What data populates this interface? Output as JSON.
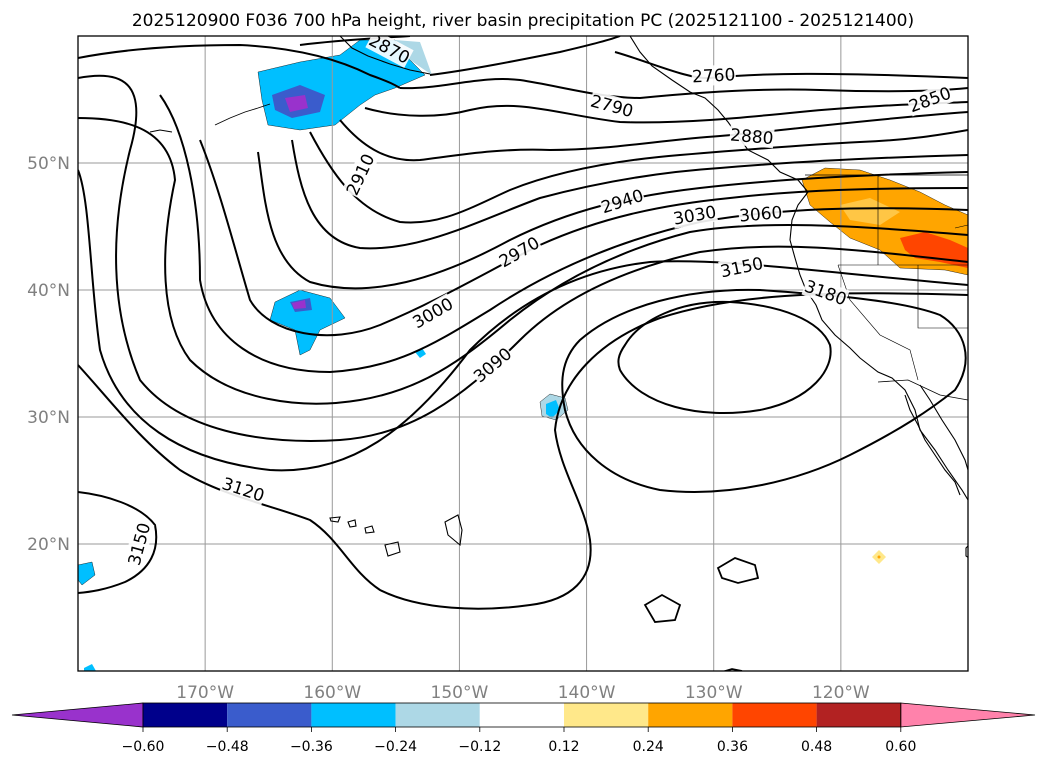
{
  "title": "2025120900 F036 700 hPa height, river basin precipitation PC (2025121100 - 2025121400)",
  "chart_data": {
    "type": "contour",
    "title": "2025120900 F036 700 hPa height, river basin precipitation PC (2025121100 - 2025121400)",
    "map": {
      "lon_range": [
        -180,
        -110
      ],
      "lat_range": [
        10,
        60
      ],
      "lon_ticks": [
        {
          "value": -170,
          "label": "170°W"
        },
        {
          "value": -160,
          "label": "160°W"
        },
        {
          "value": -150,
          "label": "150°W"
        },
        {
          "value": -140,
          "label": "140°W"
        },
        {
          "value": -130,
          "label": "130°W"
        },
        {
          "value": -120,
          "label": "120°W"
        }
      ],
      "lat_ticks": [
        {
          "value": 20,
          "label": "20°N"
        },
        {
          "value": 30,
          "label": "30°N"
        },
        {
          "value": 40,
          "label": "40°N"
        },
        {
          "value": 50,
          "label": "50°N"
        }
      ],
      "grid": true
    },
    "height_contour_labels": [
      {
        "value": "2760",
        "lon": -130.0,
        "lat": 56.9
      },
      {
        "value": "2790",
        "lon": -138.0,
        "lat": 54.5
      },
      {
        "value": "2850",
        "lon": -113.0,
        "lat": 55.0
      },
      {
        "value": "2880",
        "lon": -127.0,
        "lat": 52.1
      },
      {
        "value": "2870",
        "lon": -155.5,
        "lat": 59.0
      },
      {
        "value": "2910",
        "lon": -157.8,
        "lat": 49.1
      },
      {
        "value": "2940",
        "lon": -137.2,
        "lat": 47.0
      },
      {
        "value": "2970",
        "lon": -145.3,
        "lat": 43.0
      },
      {
        "value": "3000",
        "lon": -152.1,
        "lat": 38.2
      },
      {
        "value": "3030",
        "lon": -131.5,
        "lat": 45.9
      },
      {
        "value": "3060",
        "lon": -126.3,
        "lat": 46.0
      },
      {
        "value": "3090",
        "lon": -147.4,
        "lat": 34.1
      },
      {
        "value": "3120",
        "lon": -167.0,
        "lat": 24.3
      },
      {
        "value": "3150",
        "lon": -127.8,
        "lat": 41.8
      },
      {
        "value": "3150",
        "lon": -175.2,
        "lat": 20.0
      },
      {
        "value": "3180",
        "lon": -121.2,
        "lat": 39.8
      }
    ],
    "precip_pc_regions": [
      {
        "level": -0.36,
        "description": "Gulf of Alaska"
      },
      {
        "level": -0.36,
        "description": "Central North Pacific near 40N 160W"
      },
      {
        "level": -0.24,
        "description": "near 31N 143W"
      },
      {
        "level": 0.36,
        "description": "Pacific Northwest / Columbia basin"
      },
      {
        "level": 0.24,
        "description": "near 19N 117W"
      }
    ],
    "colorbar": {
      "ticks": [
        "−0.60",
        "−0.48",
        "−0.36",
        "−0.24",
        "−0.12",
        "0.12",
        "0.24",
        "0.36",
        "0.48",
        "0.60"
      ],
      "colors": [
        "#9932cc",
        "#00008b",
        "#3a5ccc",
        "#00bfff",
        "#add8e6",
        "#ffffff",
        "#ffe88a",
        "#ffa500",
        "#ff4500",
        "#b22222",
        "#ff82ab"
      ],
      "extend": "both"
    }
  }
}
